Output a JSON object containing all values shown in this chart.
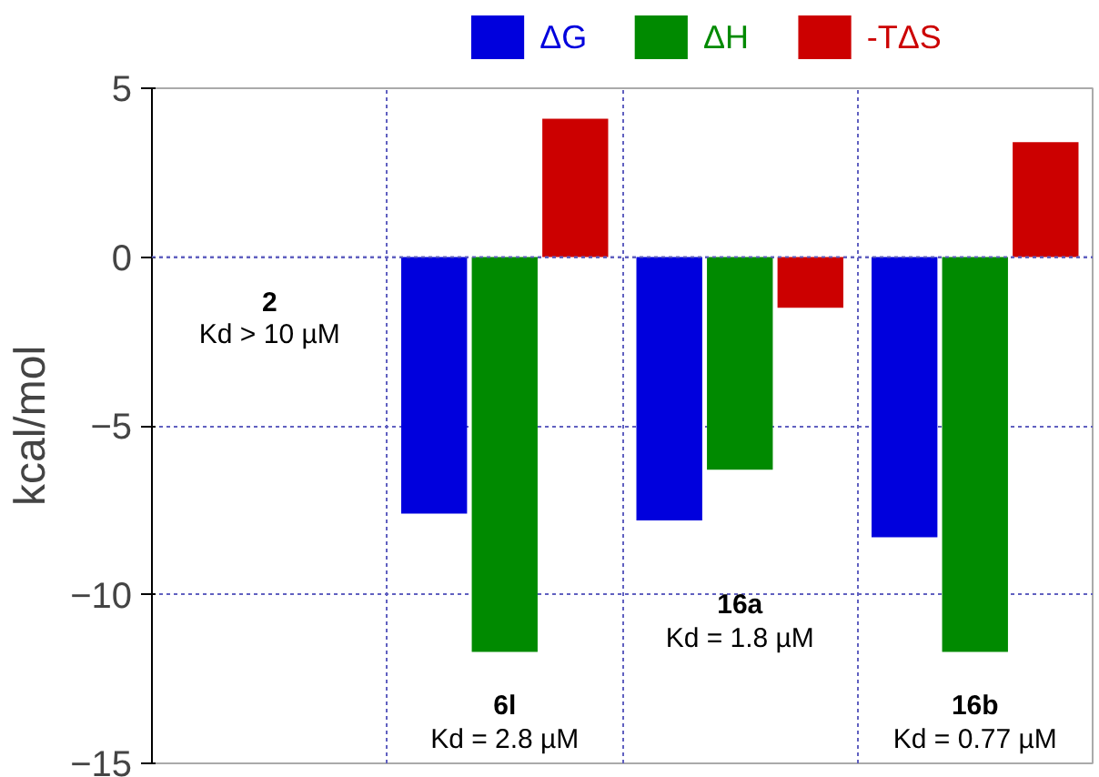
{
  "chart_data": {
    "type": "bar",
    "ylabel": "kcal/mol",
    "categories": [
      "2",
      "6l",
      "16a",
      "16b"
    ],
    "series": [
      {
        "name": "ΔG",
        "color": "#0000dd",
        "values": [
          null,
          -7.6,
          -7.8,
          -8.3
        ]
      },
      {
        "name": "ΔH",
        "color": "#008a00",
        "values": [
          null,
          -11.7,
          -6.3,
          -11.7
        ]
      },
      {
        "name": "-TΔS",
        "color": "#cc0000",
        "values": [
          null,
          4.1,
          -1.5,
          3.4
        ]
      }
    ],
    "ylim": [
      -15,
      5
    ],
    "yticks": [
      -15,
      -10,
      -5,
      0,
      5
    ],
    "grid": true,
    "legend": "top",
    "annotations": [
      "Kd > 10 µM",
      "Kd = 2.8 µM",
      "Kd = 1.8 µM",
      "Kd = 0.77 µM"
    ]
  }
}
